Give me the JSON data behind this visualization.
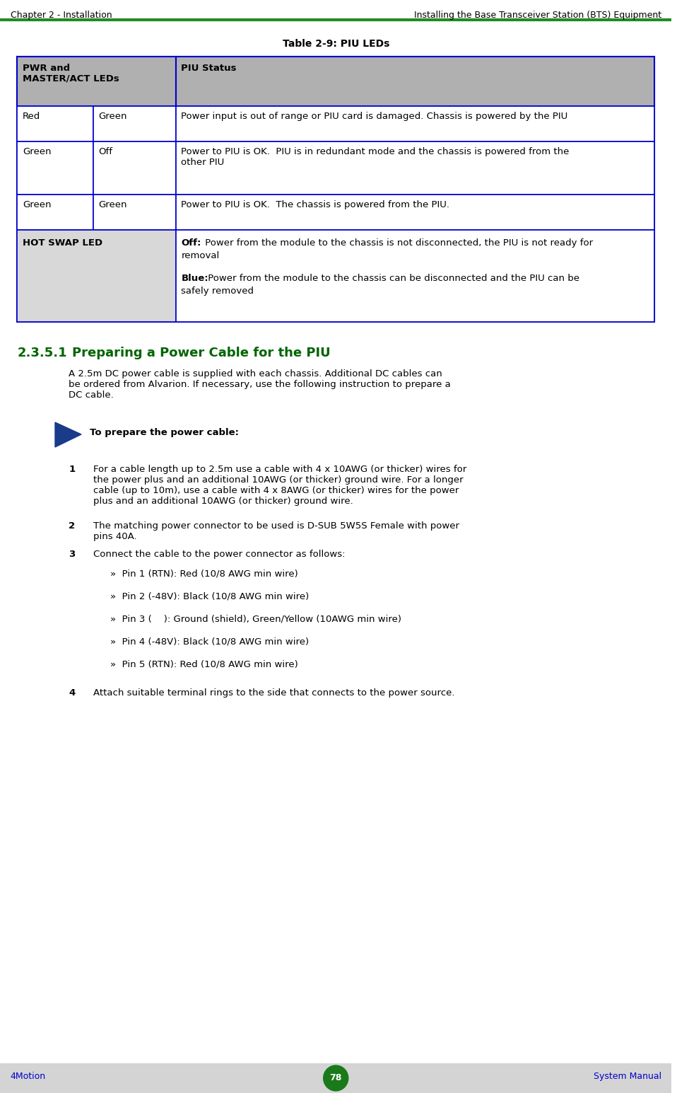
{
  "header_left": "Chapter 2 - Installation",
  "header_right": "Installing the Base Transceiver Station (BTS) Equipment",
  "header_line_color": "#228B22",
  "footer_bg": "#d4d4d4",
  "footer_page": "78",
  "footer_left": "4Motion",
  "footer_right": "System Manual",
  "footer_text_color": "#0000CD",
  "table_title": "Table 2-9: PIU LEDs",
  "table_border_color": "#0000CD",
  "table_header_bg": "#b0b0b0",
  "table_hot_swap_bg": "#d8d8d8",
  "table_normal_bg": "#ffffff",
  "col1_header": "PWR and\nMASTER/ACT LEDs",
  "col2_header": "PIU Status",
  "rows": [
    {
      "c1a": "Red",
      "c1b": "Green",
      "c2": "Power input is out of range or PIU card is damaged. Chassis is powered by the PIU"
    },
    {
      "c1a": "Green",
      "c1b": "Off",
      "c2": "Power to PIU is OK.  PIU is in redundant mode and the chassis is powered from the\nother PIU"
    },
    {
      "c1a": "Green",
      "c1b": "Green",
      "c2": "Power to PIU is OK.  The chassis is powered from the PIU."
    },
    {
      "c1a": "HOT SWAP LED",
      "c1b": "",
      "c2": "**Off:** Power from the module to the chassis is not disconnected, the PIU is not ready for\nremoval\n\n**Blue:** Power from the module to the chassis can be disconnected and the PIU can be\nsafely removed"
    }
  ],
  "section_num": "2.3.5.1",
  "section_title": "Preparing a Power Cable for the PIU",
  "section_title_color": "#006400",
  "body_text": "A 2.5m DC power cable is supplied with each chassis. Additional DC cables can\nbe ordered from Alvarion. If necessary, use the following instruction to prepare a\nDC cable.",
  "arrow_color": "#003399",
  "arrow_label": "To prepare the power cable:",
  "steps": [
    {
      "num": "1",
      "text": "For a cable length up to 2.5m use a cable with 4 x 10AWG (or thicker) wires for\nthe power plus and an additional 10AWG (or thicker) ground wire. For a longer\ncable (up to 10m), use a cable with 4 x 8AWG (or thicker) wires for the power\nplus and an additional 10AWG (or thicker) ground wire."
    },
    {
      "num": "2",
      "text": "The matching power connector to be used is D-SUB 5W5S Female with power\npins 40A."
    },
    {
      "num": "3",
      "text": "Connect the cable to the power connector as follows:"
    },
    {
      "num": "4",
      "text": "Attach suitable terminal rings to the side that connects to the power source."
    }
  ],
  "sub_bullets": [
    "»  Pin 1 (RTN): Red (10/8 AWG min wire)",
    "»  Pin 2 (-48V): Black (10/8 AWG min wire)",
    "»  Pin 3 (    ): Ground (shield), Green/Yellow (10AWG min wire)",
    "»  Pin 4 (-48V): Black (10/8 AWG min wire)",
    "»  Pin 5 (RTN): Red (10/8 AWG min wire)"
  ],
  "bg_color": "#ffffff",
  "text_color": "#000000",
  "font_family": "DejaVu Sans"
}
